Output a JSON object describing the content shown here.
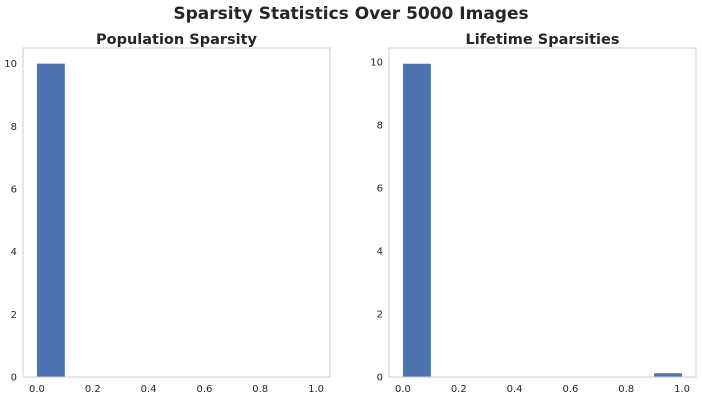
{
  "suptitle": "Sparsity Statistics Over 5000 Images",
  "colors": {
    "bar": "#4c72b0",
    "spine": "#cccccc",
    "text": "#262626"
  },
  "chart_data": [
    {
      "type": "bar",
      "title": "Population Sparsity",
      "xlabel": "",
      "ylabel": "",
      "grid": false,
      "xlim": [
        -0.05,
        1.05
      ],
      "ylim": [
        0,
        10.5
      ],
      "x_ticks": [
        0.0,
        0.2,
        0.4,
        0.6,
        0.8,
        1.0
      ],
      "x_tick_labels": [
        "0.0",
        "0.2",
        "0.4",
        "0.6",
        "0.8",
        "1.0"
      ],
      "y_ticks": [
        0,
        2,
        4,
        6,
        8,
        10
      ],
      "y_tick_labels": [
        "0",
        "2",
        "4",
        "6",
        "8",
        "10"
      ],
      "bins": [
        {
          "x0": 0.0,
          "x1": 0.1,
          "value": 10
        }
      ]
    },
    {
      "type": "bar",
      "title": "Lifetime Sparsities",
      "xlabel": "",
      "ylabel": "",
      "grid": false,
      "xlim": [
        -0.05,
        1.05
      ],
      "ylim": [
        0,
        10.45
      ],
      "x_ticks": [
        0.0,
        0.2,
        0.4,
        0.6,
        0.8,
        1.0
      ],
      "x_tick_labels": [
        "0.0",
        "0.2",
        "0.4",
        "0.6",
        "0.8",
        "1.0"
      ],
      "y_ticks": [
        0,
        2,
        4,
        6,
        8,
        10
      ],
      "y_tick_labels": [
        "0",
        "2",
        "4",
        "6",
        "8",
        "10"
      ],
      "bins": [
        {
          "x0": 0.0,
          "x1": 0.1,
          "value": 9.95
        },
        {
          "x0": 0.9,
          "x1": 1.0,
          "value": 0.12
        }
      ]
    }
  ]
}
